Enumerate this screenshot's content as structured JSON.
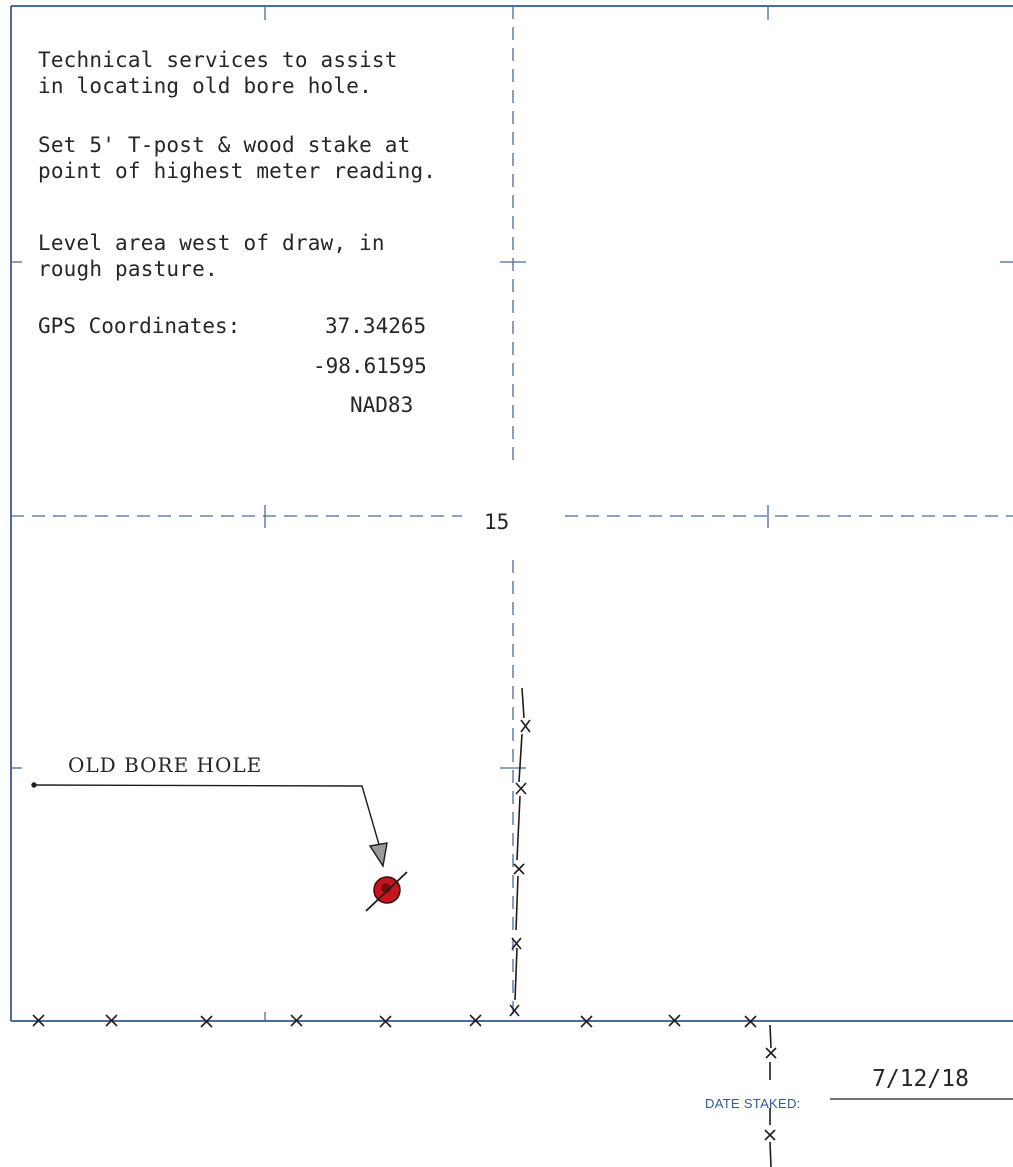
{
  "notes": {
    "line1": "Technical services to assist",
    "line2": "in locating old bore hole.",
    "line3": "Set 5' T-post & wood stake at",
    "line4": "point of highest meter reading.",
    "line5": "Level area west of draw, in",
    "line6": "rough pasture."
  },
  "gps": {
    "label": "GPS Coordinates:",
    "lat": "37.34265",
    "lon": "-98.61595",
    "datum": "NAD83"
  },
  "section_number": "15",
  "bore_hole_label": "OLD BORE HOLE",
  "date_staked": {
    "label": "DATE STAKED:",
    "value": "7/12/18"
  },
  "colors": {
    "grid_blue": "#4a6aa0",
    "ink": "#262626",
    "marker_red": "#c8141e"
  }
}
